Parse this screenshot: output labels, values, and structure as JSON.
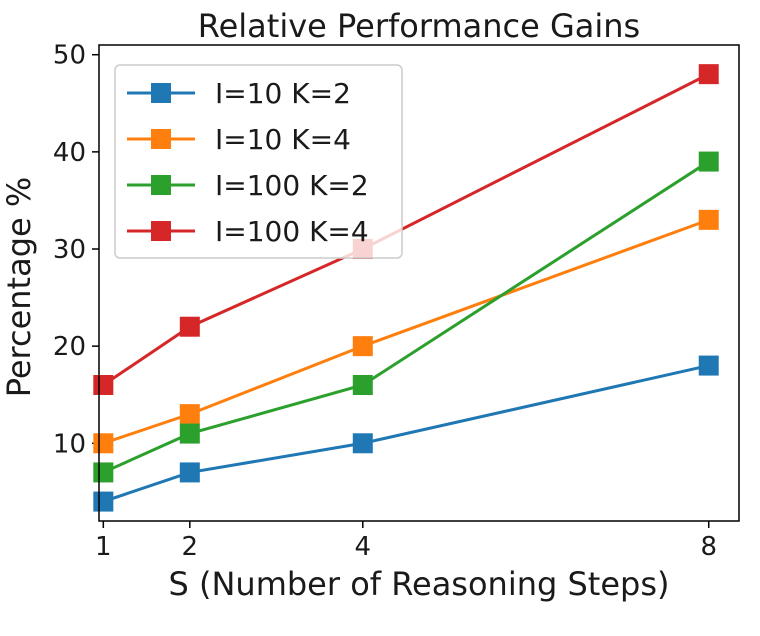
{
  "chart_data": {
    "type": "line",
    "title": "Relative Performance Gains",
    "xlabel": "S (Number of Reasoning Steps)",
    "ylabel": "Percentage %",
    "x": [
      1,
      2,
      4,
      8
    ],
    "x_ticks": [
      "1",
      "2",
      "4",
      "8"
    ],
    "y_ticks": [
      "10",
      "20",
      "30",
      "40",
      "50"
    ],
    "xlim": [
      0.95,
      8.35
    ],
    "ylim": [
      2,
      51
    ],
    "grid": false,
    "legend_position": "top-left",
    "marker": "square",
    "series": [
      {
        "name": "I=10 K=2",
        "color": "#1f77b4",
        "values": [
          4,
          7,
          10,
          18
        ]
      },
      {
        "name": "I=10 K=4",
        "color": "#ff7f0e",
        "values": [
          10,
          13,
          20,
          33
        ]
      },
      {
        "name": "I=100 K=2",
        "color": "#2ca02c",
        "values": [
          7,
          11,
          16,
          39
        ]
      },
      {
        "name": "I=100 K=4",
        "color": "#d62728",
        "values": [
          16,
          22,
          30,
          48
        ]
      }
    ]
  }
}
